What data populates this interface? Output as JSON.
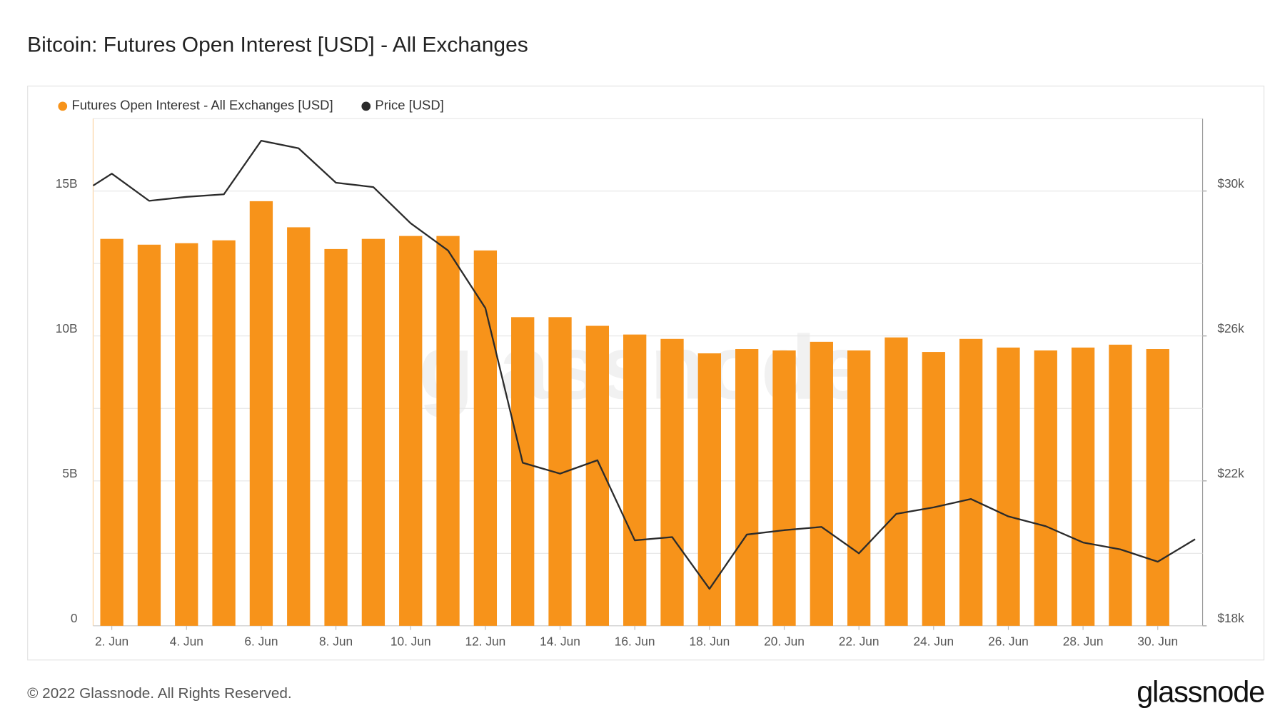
{
  "chart_data": {
    "type": "bar",
    "title": "Bitcoin: Futures Open Interest [USD] - All Exchanges",
    "footer": "© 2022 Glassnode. All Rights Reserved.",
    "logo": "glassnode",
    "watermark": "glassnode",
    "xlim": [
      1.5,
      31.2
    ],
    "xticks": [
      {
        "value": 2,
        "label": "2. Jun"
      },
      {
        "value": 4,
        "label": "4. Jun"
      },
      {
        "value": 6,
        "label": "6. Jun"
      },
      {
        "value": 8,
        "label": "8. Jun"
      },
      {
        "value": 10,
        "label": "10. Jun"
      },
      {
        "value": 12,
        "label": "12. Jun"
      },
      {
        "value": 14,
        "label": "14. Jun"
      },
      {
        "value": 16,
        "label": "16. Jun"
      },
      {
        "value": 18,
        "label": "18. Jun"
      },
      {
        "value": 20,
        "label": "20. Jun"
      },
      {
        "value": 22,
        "label": "22. Jun"
      },
      {
        "value": 24,
        "label": "24. Jun"
      },
      {
        "value": 26,
        "label": "26. Jun"
      },
      {
        "value": 28,
        "label": "28. Jun"
      },
      {
        "value": 30,
        "label": "30. Jun"
      }
    ],
    "ylim": [
      0,
      17500000000
    ],
    "yticks": [
      0,
      {
        "value": 5000000000,
        "label": "5B"
      },
      {
        "value": 10000000000,
        "label": "10B"
      },
      {
        "value": 15000000000,
        "label": "15B"
      }
    ],
    "y_minor_gridlines": [
      2500000000,
      7500000000,
      12500000000,
      17500000000
    ],
    "y2lim": [
      18000,
      32000
    ],
    "y2ticks": [
      {
        "value": 18000,
        "label": "$18k"
      },
      {
        "value": 22000,
        "label": "$22k"
      },
      {
        "value": 26000,
        "label": "$26k"
      },
      {
        "value": 30000,
        "label": "$30k"
      }
    ],
    "grid": true,
    "legend": "top-left",
    "series": [
      {
        "name": "Futures Open Interest - All Exchanges [USD]",
        "color": "#f7931a",
        "type": "bar",
        "x": [
          2,
          3,
          4,
          5,
          6,
          7,
          8,
          9,
          10,
          11,
          12,
          13,
          14,
          15,
          16,
          17,
          18,
          19,
          20,
          21,
          22,
          23,
          24,
          25,
          26,
          27,
          28,
          29,
          30
        ],
        "values": [
          13350000000,
          13150000000,
          13200000000,
          13300000000,
          14650000000,
          13750000000,
          13000000000,
          13350000000,
          13450000000,
          13450000000,
          12950000000,
          10650000000,
          10650000000,
          10350000000,
          10050000000,
          9900000000,
          9400000000,
          9550000000,
          9500000000,
          9800000000,
          9500000000,
          9950000000,
          9450000000,
          9900000000,
          9600000000,
          9500000000,
          9600000000,
          9700000000,
          9550000000
        ]
      },
      {
        "name": "Price [USD]",
        "color": "#2b2b2b",
        "type": "line",
        "axis": "y2",
        "x": [
          1.5,
          2,
          3,
          4,
          5,
          6,
          7,
          8,
          9,
          10,
          11,
          12,
          13,
          14,
          15,
          16,
          17,
          18,
          19,
          20,
          21,
          22,
          23,
          24,
          25,
          26,
          27,
          28,
          29,
          30,
          31
        ],
        "values": [
          30150,
          30480,
          29730,
          29840,
          29910,
          31390,
          31180,
          30230,
          30110,
          29110,
          28360,
          26770,
          22500,
          22200,
          22570,
          20360,
          20450,
          19020,
          20520,
          20640,
          20730,
          20000,
          21090,
          21270,
          21500,
          21020,
          20750,
          20300,
          20110,
          19770,
          20390
        ]
      }
    ]
  }
}
